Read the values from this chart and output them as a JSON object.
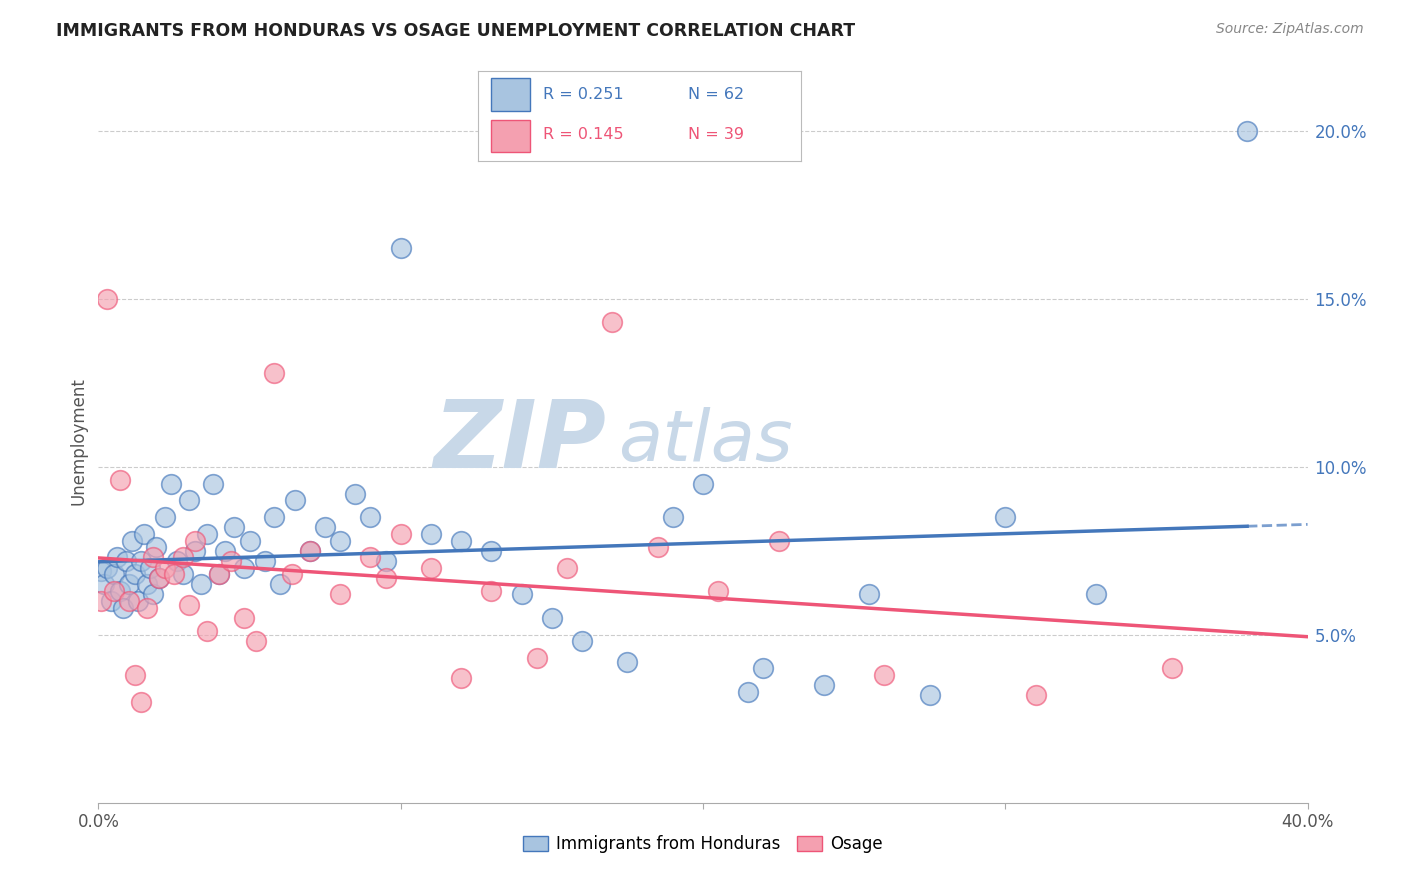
{
  "title": "IMMIGRANTS FROM HONDURAS VS OSAGE UNEMPLOYMENT CORRELATION CHART",
  "source": "Source: ZipAtlas.com",
  "ylabel": "Unemployment",
  "xmin": 0.0,
  "xmax": 0.4,
  "ymin": 0.0,
  "ymax": 0.215,
  "xticks": [
    0.0,
    0.1,
    0.2,
    0.3,
    0.4
  ],
  "xtick_labels_show": [
    "0.0%",
    "",
    "",
    "",
    "40.0%"
  ],
  "yticks": [
    0.05,
    0.1,
    0.15,
    0.2
  ],
  "ytick_labels": [
    "5.0%",
    "10.0%",
    "15.0%",
    "20.0%"
  ],
  "color_blue": "#A8C4E0",
  "color_pink": "#F4A0B0",
  "trend_blue": "#4477BB",
  "trend_pink": "#EE5577",
  "watermark_zip": "ZIP",
  "watermark_atlas": "atlas",
  "watermark_color": "#C8D8E8",
  "series1_x": [
    0.001,
    0.002,
    0.003,
    0.004,
    0.005,
    0.006,
    0.007,
    0.008,
    0.009,
    0.01,
    0.011,
    0.012,
    0.013,
    0.014,
    0.015,
    0.016,
    0.017,
    0.018,
    0.019,
    0.02,
    0.022,
    0.024,
    0.026,
    0.028,
    0.03,
    0.032,
    0.034,
    0.036,
    0.038,
    0.04,
    0.042,
    0.045,
    0.048,
    0.05,
    0.055,
    0.058,
    0.06,
    0.065,
    0.07,
    0.075,
    0.08,
    0.085,
    0.09,
    0.095,
    0.1,
    0.11,
    0.12,
    0.13,
    0.14,
    0.15,
    0.16,
    0.175,
    0.19,
    0.2,
    0.215,
    0.22,
    0.24,
    0.255,
    0.275,
    0.3,
    0.33,
    0.38
  ],
  "series1_y": [
    0.069,
    0.065,
    0.07,
    0.06,
    0.068,
    0.073,
    0.063,
    0.058,
    0.072,
    0.065,
    0.078,
    0.068,
    0.06,
    0.072,
    0.08,
    0.065,
    0.07,
    0.062,
    0.076,
    0.067,
    0.085,
    0.095,
    0.072,
    0.068,
    0.09,
    0.075,
    0.065,
    0.08,
    0.095,
    0.068,
    0.075,
    0.082,
    0.07,
    0.078,
    0.072,
    0.085,
    0.065,
    0.09,
    0.075,
    0.082,
    0.078,
    0.092,
    0.085,
    0.072,
    0.165,
    0.08,
    0.078,
    0.075,
    0.062,
    0.055,
    0.048,
    0.042,
    0.085,
    0.095,
    0.033,
    0.04,
    0.035,
    0.062,
    0.032,
    0.085,
    0.062,
    0.2
  ],
  "series2_x": [
    0.001,
    0.003,
    0.005,
    0.007,
    0.01,
    0.012,
    0.014,
    0.016,
    0.018,
    0.02,
    0.022,
    0.025,
    0.028,
    0.03,
    0.032,
    0.036,
    0.04,
    0.044,
    0.048,
    0.052,
    0.058,
    0.064,
    0.07,
    0.08,
    0.09,
    0.095,
    0.1,
    0.11,
    0.12,
    0.13,
    0.145,
    0.155,
    0.17,
    0.185,
    0.205,
    0.225,
    0.26,
    0.31,
    0.355
  ],
  "series2_y": [
    0.06,
    0.15,
    0.063,
    0.096,
    0.06,
    0.038,
    0.03,
    0.058,
    0.073,
    0.067,
    0.07,
    0.068,
    0.073,
    0.059,
    0.078,
    0.051,
    0.068,
    0.072,
    0.055,
    0.048,
    0.128,
    0.068,
    0.075,
    0.062,
    0.073,
    0.067,
    0.08,
    0.07,
    0.037,
    0.063,
    0.043,
    0.07,
    0.143,
    0.076,
    0.063,
    0.078,
    0.038,
    0.032,
    0.04
  ]
}
